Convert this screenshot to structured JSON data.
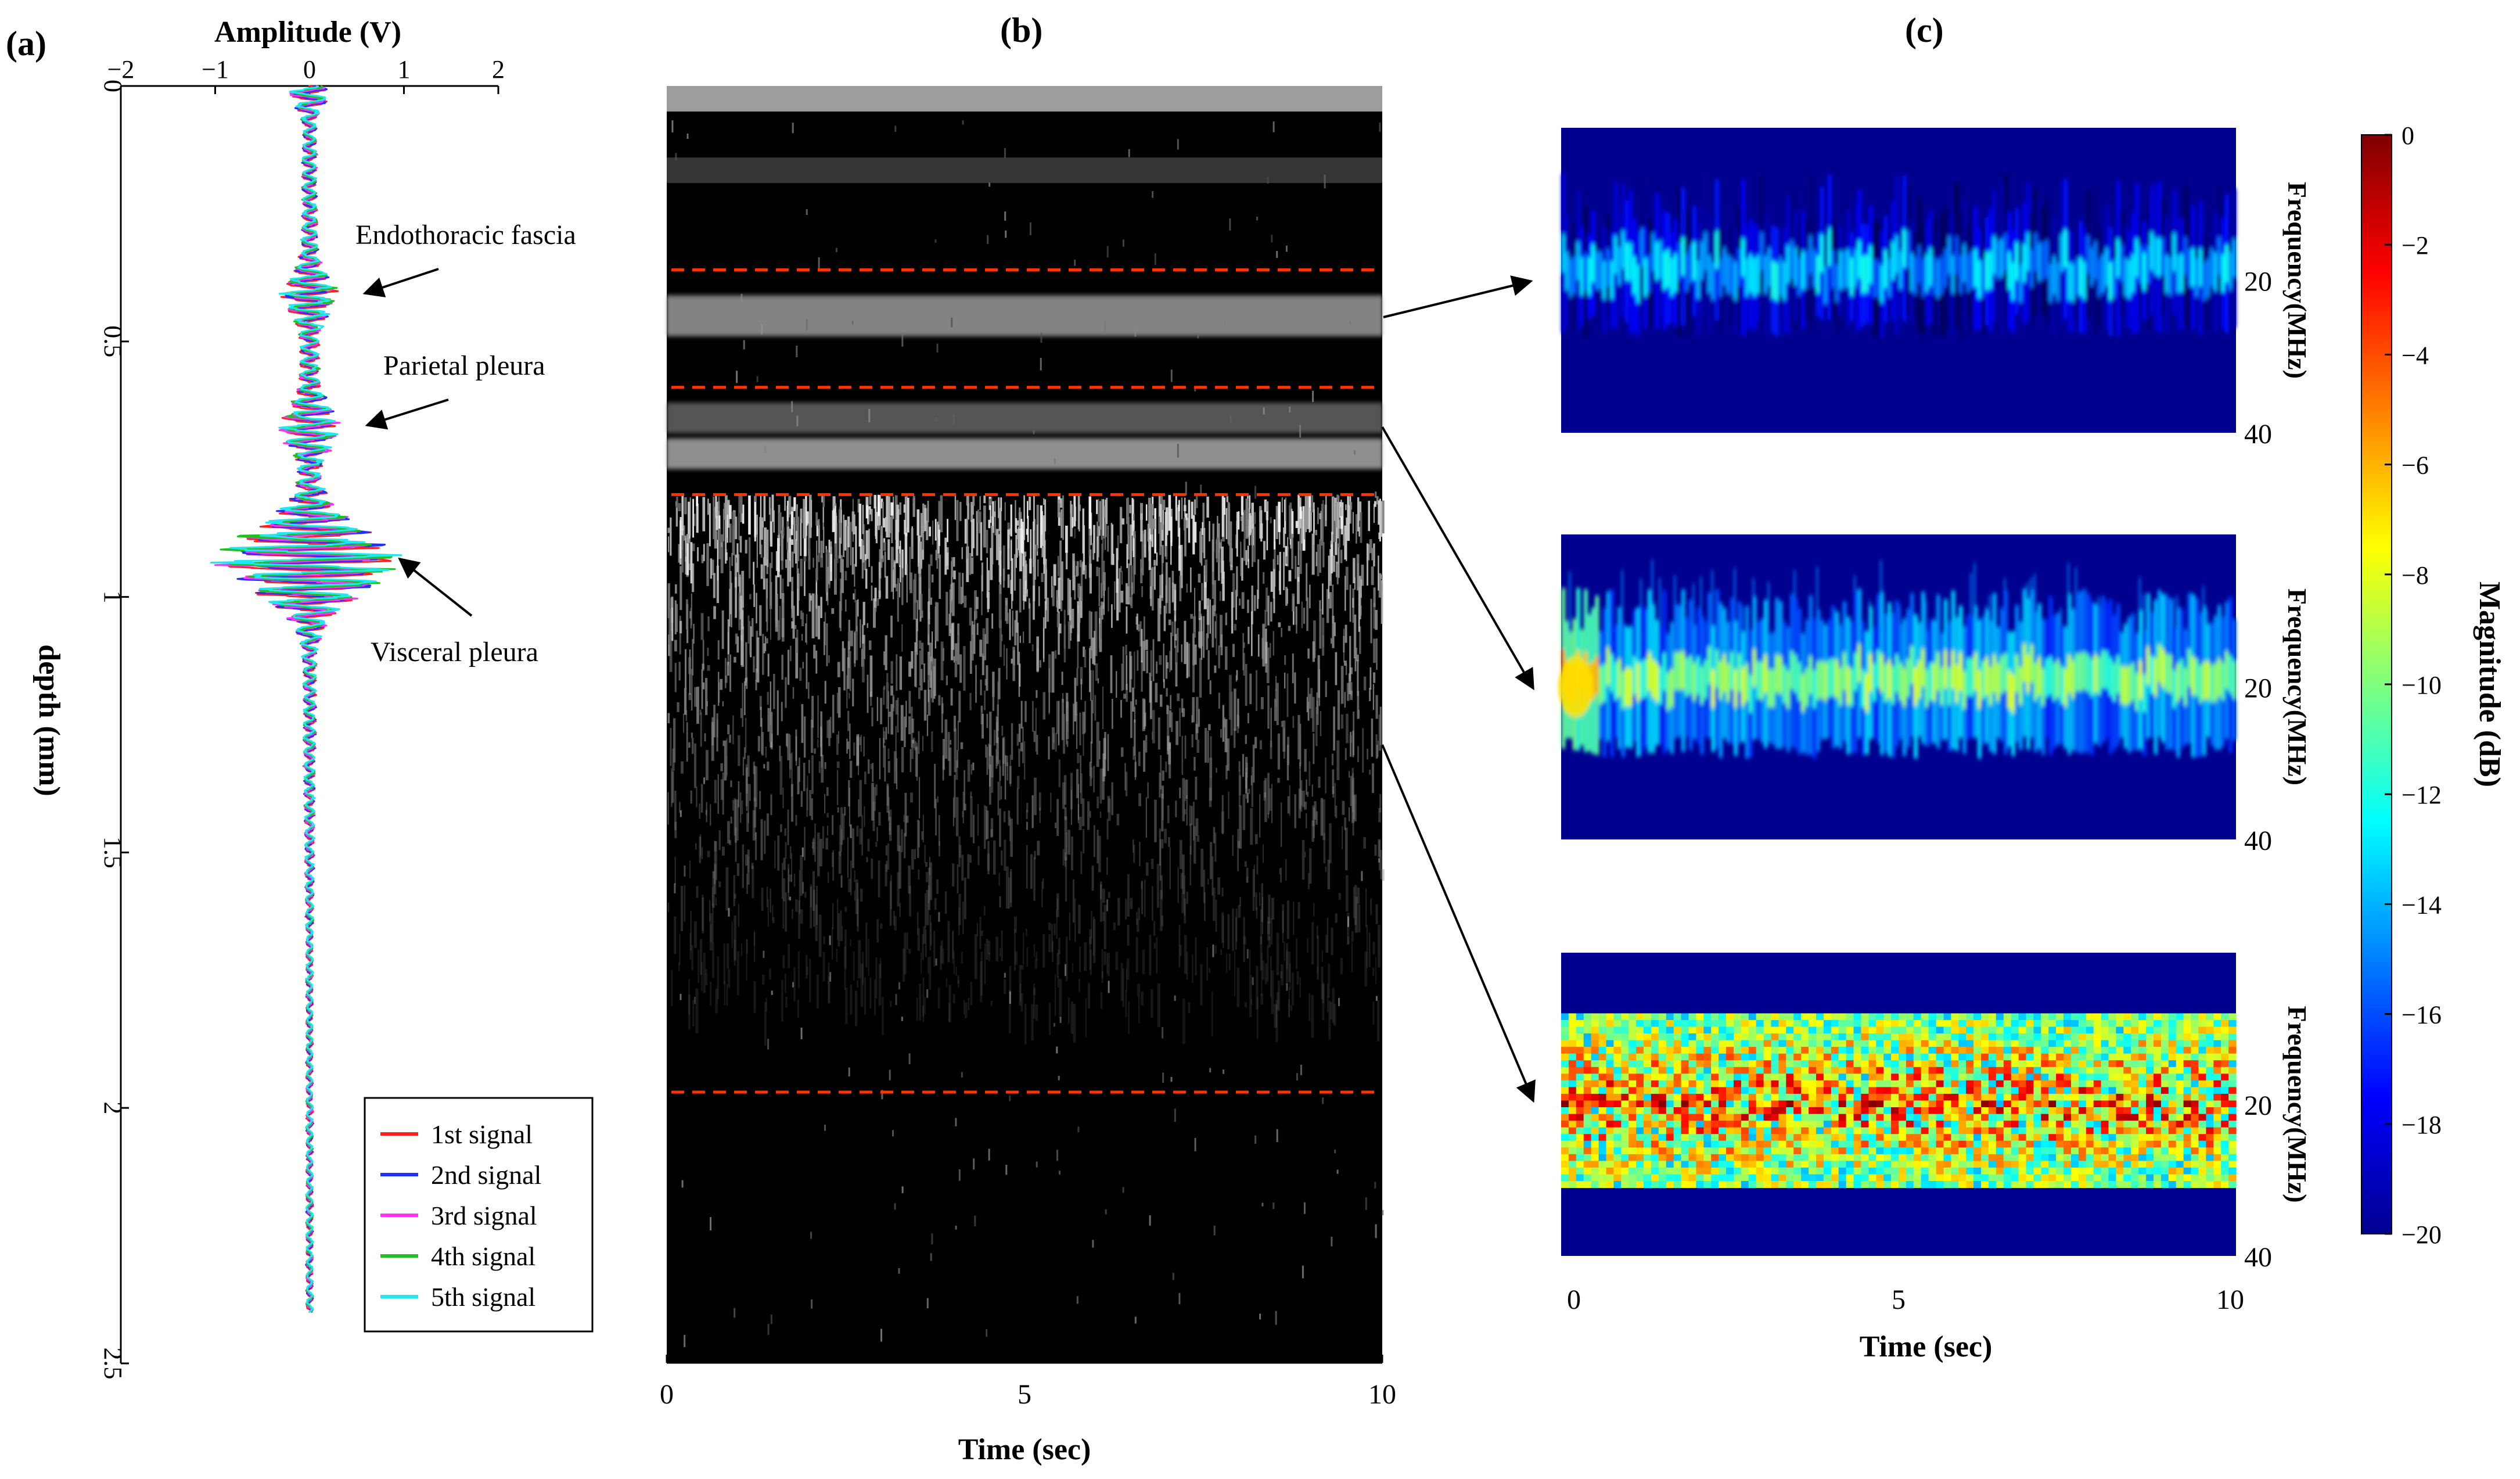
{
  "panels": {
    "a": {
      "label": "(a)",
      "xlabel": "Amplitude (V)",
      "ylabel": "depth (mm)",
      "xticks": [
        "−2",
        "−1",
        "0",
        "1",
        "2"
      ],
      "yticks": [
        "0",
        "0.5",
        "1",
        "1.5",
        "2",
        "2.5"
      ],
      "annotations": [
        "Endothoracic fascia",
        "Parietal pleura",
        "Visceral pleura"
      ]
    },
    "b": {
      "label": "(b)",
      "xlabel": "Time (sec)",
      "xticks": [
        "0",
        "5",
        "10"
      ]
    },
    "c": {
      "label": "(c)",
      "xlabel": "Time (sec)",
      "xticks": [
        "0",
        "5",
        "10"
      ],
      "ylabel": "Frequency(MHz)",
      "yticks": [
        "20",
        "40"
      ],
      "colorbar_label": "Magnitude (dB)",
      "colorbar_ticks": [
        "0",
        "−2",
        "−4",
        "−6",
        "−8",
        "−10",
        "−12",
        "−14",
        "−16",
        "−18",
        "−20"
      ]
    }
  },
  "chart_data": [
    {
      "type": "line",
      "panel": "a",
      "orientation": "vertical",
      "xlim": [
        -2,
        2
      ],
      "ylim": [
        0,
        2.5
      ],
      "y_reversed": true,
      "x_axis_position": "top",
      "legend_position": "bottom-right",
      "annotation_depths": {
        "Endothoracic fascia": 0.41,
        "Parietal pleura": 0.67,
        "Visceral pleura": 0.93
      },
      "series": [
        {
          "name": "1st signal",
          "color": "#ff2020"
        },
        {
          "name": "2nd signal",
          "color": "#2030ff"
        },
        {
          "name": "3rd signal",
          "color": "#ff30ff"
        },
        {
          "name": "4th signal",
          "color": "#20c020"
        },
        {
          "name": "5th signal",
          "color": "#20e8f0"
        }
      ]
    },
    {
      "type": "heatmap",
      "panel": "b",
      "colormap": "gray",
      "xlim": [
        0,
        10
      ],
      "ylim": [
        0,
        2.5
      ],
      "y_reversed": true,
      "dashed_line_color": "#ff3300",
      "dashed_line_depths": [
        0.36,
        0.59,
        0.8,
        1.97
      ]
    },
    {
      "type": "heatmap",
      "panel": "c",
      "colormap": "jet",
      "xlim": [
        0,
        10
      ],
      "frequency_axis": [
        0,
        40
      ],
      "clim": [
        -20,
        0
      ],
      "subplots": [
        {
          "region": "endothoracic fascia",
          "band_mhz": [
            12,
            26
          ],
          "peak_db": -12
        },
        {
          "region": "parietal pleura",
          "band_mhz": [
            10,
            28
          ],
          "peak_db": -8
        },
        {
          "region": "visceral pleura",
          "band_mhz": [
            8,
            31
          ],
          "peak_db": -3
        }
      ]
    }
  ]
}
